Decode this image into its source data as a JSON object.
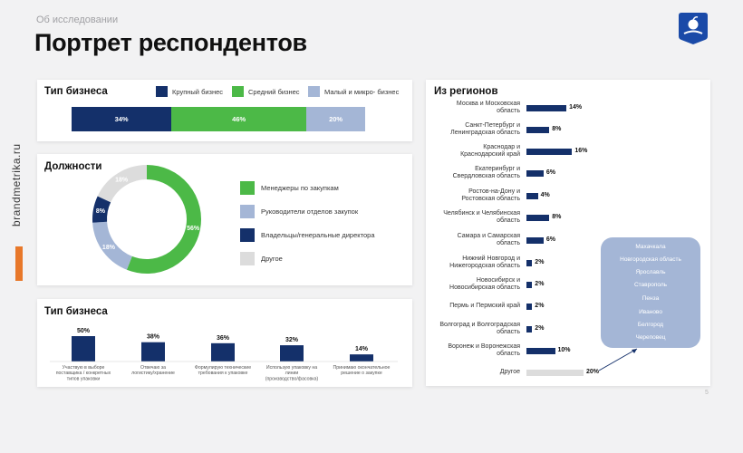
{
  "header": {
    "section_label": "Об исследовании",
    "page_title": "Портрет респондентов",
    "side_text": "brandmetrika.ru",
    "page_number": "5"
  },
  "colors": {
    "large": "#14306a",
    "medium": "#4cb947",
    "small": "#a4b6d6",
    "other": "#dcdcdc",
    "accent": "#e8782a"
  },
  "chart_data": [
    {
      "type": "bar",
      "orientation": "horizontal-stacked",
      "title": "Тип бизнеса",
      "series": [
        {
          "name": "Крупный бизнес",
          "value": 34,
          "label": "34%"
        },
        {
          "name": "Средний бизнес",
          "value": 46,
          "label": "46%"
        },
        {
          "name": "Малый и микро- бизнес",
          "value": 20,
          "label": "20%"
        }
      ]
    },
    {
      "type": "pie",
      "title": "Должности",
      "slices": [
        {
          "name": "Менеджеры по закупкам",
          "value": 56,
          "label": "56%"
        },
        {
          "name": "Руководители отделов закупок",
          "value": 18,
          "label": "18%"
        },
        {
          "name": "Владельцы/генеральные директора",
          "value": 8,
          "label": "8%"
        },
        {
          "name": "Другое",
          "value": 18,
          "label": "18%"
        }
      ]
    },
    {
      "type": "bar",
      "title": "Тип бизнеса",
      "categories": [
        "Участвую в выборе поставщика / конкретных типов упаковки",
        "Отвечаю за логистику/хранение",
        "Формулирую технические требования к упаковке",
        "Использую упаковку на линии (производство/фасовка)",
        "Принимаю окончательное решение о закупке"
      ],
      "values": [
        50,
        38,
        36,
        32,
        14
      ],
      "labels": [
        "50%",
        "38%",
        "36%",
        "32%",
        "14%"
      ]
    },
    {
      "type": "bar",
      "orientation": "horizontal",
      "title": "Из регионов",
      "categories": [
        "Москва и Московская область",
        "Санкт-Петербург и Ленинградская область",
        "Краснодар и Краснодарский край",
        "Екатеринбург и Свердловская область",
        "Ростов-на-Дону и Ростовская область",
        "Челябинск и Челябинская область",
        "Самара и Самарская область",
        "Нижний Новгород и Нижегородская область",
        "Новосибирск и Новосибирская область",
        "Пермь и Пермский край",
        "Волгоград и Волгоградская область",
        "Воронеж и Воронежская область",
        "Другое"
      ],
      "values": [
        14,
        8,
        16,
        6,
        4,
        8,
        6,
        2,
        2,
        2,
        2,
        10,
        20
      ],
      "labels": [
        "14%",
        "8%",
        "16%",
        "6%",
        "4%",
        "8%",
        "6%",
        "2%",
        "2%",
        "2%",
        "2%",
        "10%",
        "20%"
      ]
    }
  ],
  "other_cities": [
    "Махачкала",
    "Новгородская область",
    "Ярославль",
    "Ставрополь",
    "Пенза",
    "Иваново",
    "Белгород",
    "Череповец"
  ]
}
